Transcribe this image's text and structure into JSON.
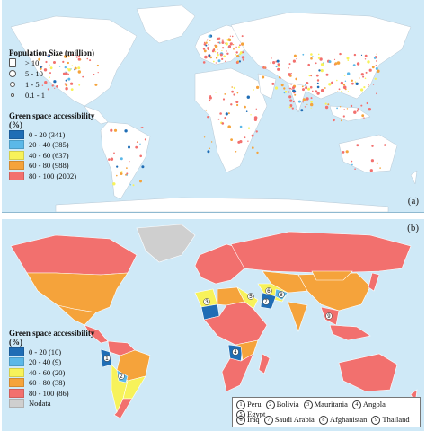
{
  "panel_a": {
    "label": "(a)",
    "size_legend": {
      "title": "Population Size (million)",
      "items": [
        {
          "label": "> 10",
          "icon": "large-circle"
        },
        {
          "label": "5 - 10",
          "icon": "medium-circle"
        },
        {
          "label": "1 - 5",
          "icon": "small-circle"
        },
        {
          "label": "0.1 - 1",
          "icon": "tiny-circle"
        }
      ]
    },
    "access_legend": {
      "title": "Green space accessibility (%)",
      "items": [
        {
          "label": "0 - 20 (341)",
          "color": "#1f6db5"
        },
        {
          "label": "20 - 40 (385)",
          "color": "#5bb8e8"
        },
        {
          "label": "40 - 60 (637)",
          "color": "#f7f25a"
        },
        {
          "label": "60 - 80 (988)",
          "color": "#f5a33b"
        },
        {
          "label": "80 - 100 (2002)",
          "color": "#f2706e"
        }
      ]
    }
  },
  "panel_b": {
    "label": "(b)",
    "access_legend": {
      "title": "Green space accessibility (%)",
      "items": [
        {
          "label": "0 - 20 (10)",
          "color": "#1f6db5"
        },
        {
          "label": "20 - 40 (9)",
          "color": "#5bb8e8"
        },
        {
          "label": "40 - 60 (20)",
          "color": "#f7f25a"
        },
        {
          "label": "60 - 80 (38)",
          "color": "#f5a33b"
        },
        {
          "label": "80 - 100 (86)",
          "color": "#f2706e"
        },
        {
          "label": "Nodata",
          "color": "#cfcfcf"
        }
      ]
    },
    "countries": [
      {
        "num": "1",
        "name": "Peru"
      },
      {
        "num": "2",
        "name": "Bolivia"
      },
      {
        "num": "3",
        "name": "Mauritania"
      },
      {
        "num": "4",
        "name": "Angola"
      },
      {
        "num": "5",
        "name": "Egypt"
      },
      {
        "num": "6",
        "name": "Iraq"
      },
      {
        "num": "7",
        "name": "Saudi Arabia"
      },
      {
        "num": "8",
        "name": "Afghanistan"
      },
      {
        "num": "9",
        "name": "Thailand"
      }
    ]
  },
  "colors": {
    "ocean": "#cfe9f7",
    "land_a": "#ffffff",
    "nodata": "#cfcfcf"
  }
}
